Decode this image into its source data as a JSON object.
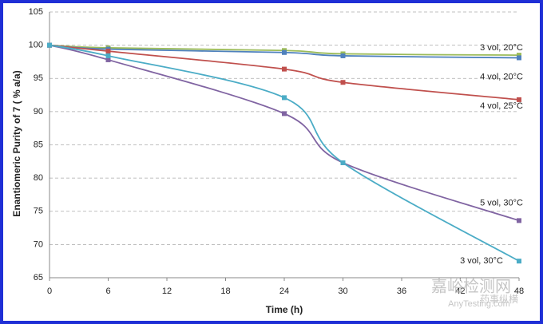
{
  "chart_data": {
    "type": "line",
    "y_label": "Enantiomeric Purity of 7 ( % a/a)",
    "x_label": "Time (h)",
    "x": [
      0,
      6,
      24,
      30,
      48
    ],
    "series": [
      {
        "name": "3 vol, 20°C",
        "color": "#9bbb59",
        "values": [
          100,
          99.6,
          99.2,
          98.7,
          98.5
        ]
      },
      {
        "name": "4 vol, 20°C",
        "color": "#4f81bd",
        "values": [
          100,
          99.4,
          98.9,
          98.4,
          98.1
        ]
      },
      {
        "name": "4 vol, 25°C",
        "color": "#c0504d",
        "values": [
          100,
          99.1,
          96.4,
          94.4,
          91.8
        ]
      },
      {
        "name": "5 vol, 30°C",
        "color": "#8064a2",
        "values": [
          100,
          97.8,
          89.7,
          82.3,
          73.6
        ]
      },
      {
        "name": "3 vol, 30°C",
        "color": "#4bacc6",
        "values": [
          100,
          98.4,
          92.1,
          82.3,
          67.5
        ]
      }
    ],
    "xlim": [
      0,
      48
    ],
    "xticks": [
      0,
      6,
      12,
      18,
      24,
      30,
      36,
      42,
      48
    ],
    "ylim": [
      65,
      105
    ],
    "yticks": [
      65,
      70,
      75,
      80,
      85,
      90,
      95,
      100,
      105
    ],
    "grid": true,
    "watermarks": [
      "嘉峪检测网",
      "AnyTesting.com",
      "药事纵横"
    ]
  }
}
